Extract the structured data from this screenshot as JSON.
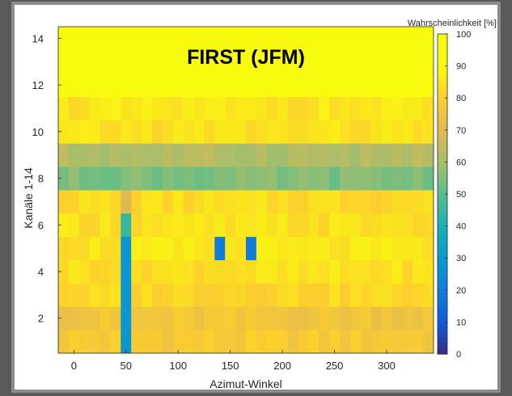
{
  "chart_data": {
    "type": "heatmap",
    "title": "FIRST (JFM)",
    "xlabel": "Azimut-Winkel",
    "ylabel": "Kanäle 1-14",
    "colorbar_label": "Wahrscheinlichkeit [%]",
    "colormap": "parula",
    "xlim": [
      -15,
      345
    ],
    "ylim": [
      0.5,
      14.5
    ],
    "clim": [
      0,
      100
    ],
    "x_step": 10,
    "x_start": -10,
    "x_ticks": [
      0,
      50,
      100,
      150,
      200,
      250,
      300
    ],
    "y_ticks": [
      2,
      4,
      6,
      8,
      10,
      12,
      14
    ],
    "colorbar_ticks": [
      0,
      10,
      20,
      30,
      40,
      50,
      60,
      70,
      80,
      90,
      100
    ],
    "channels": [
      {
        "channel": 14,
        "value": 97
      },
      {
        "channel": 13,
        "value": 97
      },
      {
        "channel": 12,
        "value": 97
      },
      {
        "channel": 11,
        "value": 85
      },
      {
        "channel": 10,
        "value": 84
      },
      {
        "channel": 9,
        "value": 62
      },
      {
        "channel": 8,
        "value": 55
      },
      {
        "channel": 7,
        "value": 83
      },
      {
        "channel": 6,
        "value": 84
      },
      {
        "channel": 5,
        "value": 85
      },
      {
        "channel": 4,
        "value": 84
      },
      {
        "channel": 3,
        "value": 82
      },
      {
        "channel": 2,
        "value": 76
      },
      {
        "channel": 1,
        "value": 78
      }
    ],
    "anomalies": [
      {
        "azimuth": 50,
        "channels": [
          1,
          2,
          3,
          4,
          5
        ],
        "value": 28
      },
      {
        "azimuth": 50,
        "channels": [
          6
        ],
        "value": 45
      },
      {
        "azimuth": 50,
        "channels": [
          7
        ],
        "value": 70
      },
      {
        "azimuth": 140,
        "channels": [
          5
        ],
        "value": 20
      },
      {
        "azimuth": 170,
        "channels": [
          5
        ],
        "value": 20
      }
    ]
  }
}
